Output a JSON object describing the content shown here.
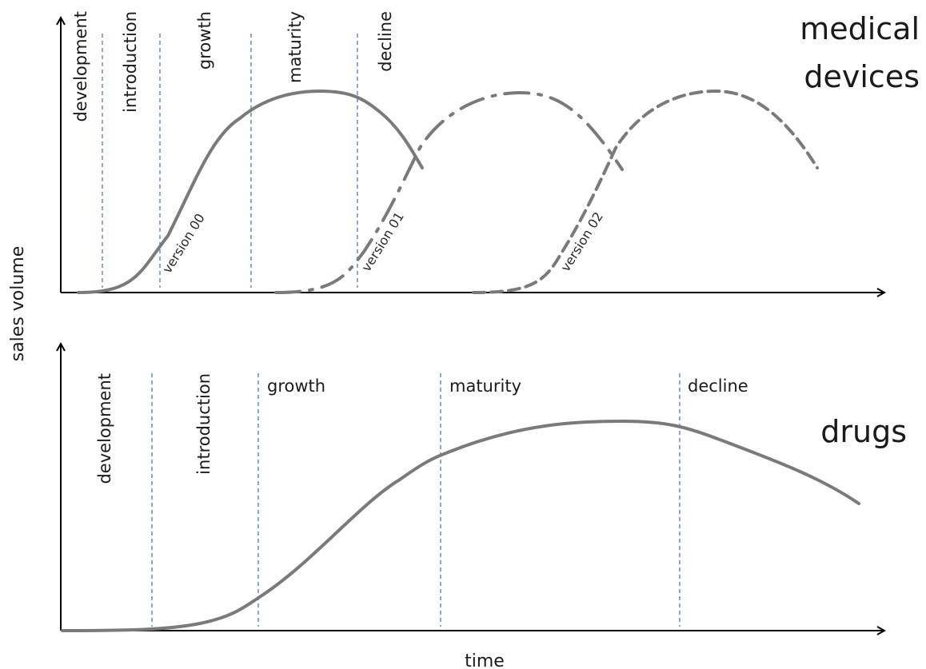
{
  "axes": {
    "y_label": "sales volume",
    "x_label": "time"
  },
  "medical_devices": {
    "title_line1": "medical",
    "title_line2": "devices",
    "stages": [
      "development",
      "introduction",
      "growth",
      "maturity",
      "decline"
    ],
    "versions": [
      {
        "label": "version 00",
        "line_style": "solid"
      },
      {
        "label": "version 01",
        "line_style": "dash-dot"
      },
      {
        "label": "version 02",
        "line_style": "dashed"
      }
    ]
  },
  "drugs": {
    "title": "drugs",
    "stages": [
      "development",
      "introduction",
      "growth",
      "maturity",
      "decline"
    ]
  },
  "colors": {
    "curve": "#7a7a7a",
    "stage_line": "#4a78c2",
    "axis": "#000000"
  }
}
